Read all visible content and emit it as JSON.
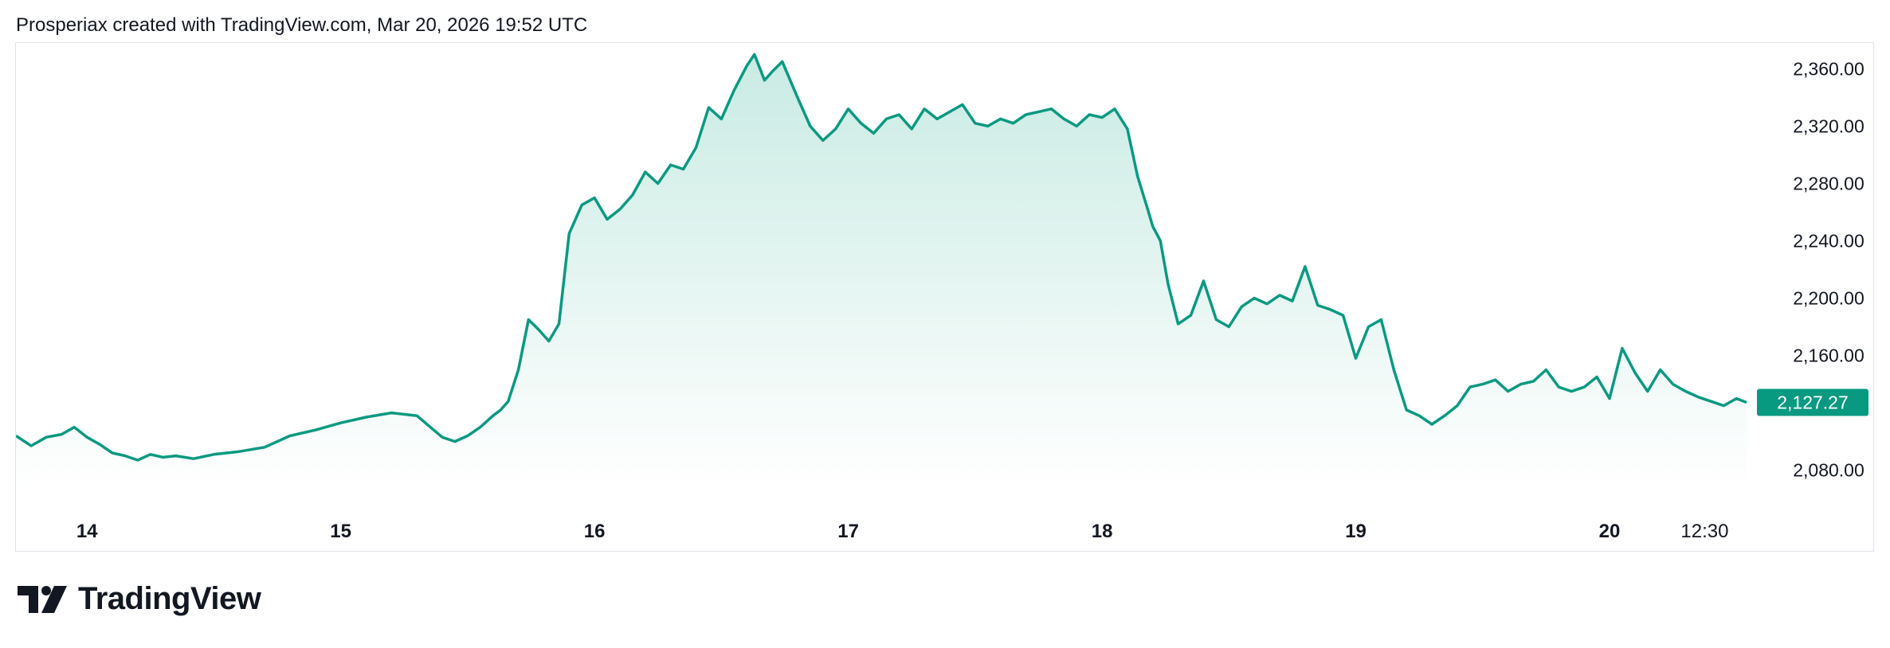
{
  "header": {
    "attribution": "Prosperiax created with TradingView.com, Mar 20, 2026 19:52 UTC"
  },
  "footer": {
    "brand": "TradingView"
  },
  "colors": {
    "line": "#089981",
    "fill_top": "#c9ebe3",
    "fill_bottom": "#ffffff",
    "price_tag": "#089981",
    "border": "#e0e3eb"
  },
  "chart_data": {
    "type": "area",
    "y_axis": {
      "ticks": [
        "2,360.00",
        "2,320.00",
        "2,280.00",
        "2,240.00",
        "2,200.00",
        "2,160.00",
        "2,080.00"
      ],
      "tick_values": [
        2360,
        2320,
        2280,
        2240,
        2200,
        2160,
        2080
      ],
      "range": [
        2067,
        2378
      ],
      "position": "right"
    },
    "x_axis": {
      "ticks": [
        "14",
        "15",
        "16",
        "17",
        "18",
        "19",
        "20",
        "12:30"
      ],
      "tick_values": [
        14,
        15,
        16,
        17,
        18,
        19,
        20,
        20.375
      ],
      "range": [
        13.72,
        20.54
      ]
    },
    "last_price": {
      "label": "2,127.27",
      "value": 2127.27
    },
    "series": [
      {
        "x": [
          13.72,
          13.78,
          13.84,
          13.9,
          13.95,
          14.0,
          14.05,
          14.1,
          14.15,
          14.2,
          14.25,
          14.3,
          14.35,
          14.42,
          14.5,
          14.6,
          14.7,
          14.8,
          14.9,
          15.0,
          15.1,
          15.2,
          15.3,
          15.4,
          15.45,
          15.5,
          15.55,
          15.6,
          15.63,
          15.66,
          15.7,
          15.74,
          15.78,
          15.82,
          15.86,
          15.9,
          15.95,
          16.0,
          16.05,
          16.1,
          16.15,
          16.2,
          16.25,
          16.3,
          16.35,
          16.4,
          16.45,
          16.5,
          16.55,
          16.6,
          16.63,
          16.67,
          16.7,
          16.74,
          16.8,
          16.85,
          16.9,
          16.95,
          17.0,
          17.05,
          17.1,
          17.15,
          17.2,
          17.25,
          17.3,
          17.35,
          17.4,
          17.45,
          17.5,
          17.55,
          17.6,
          17.65,
          17.7,
          17.75,
          17.8,
          17.85,
          17.9,
          17.95,
          18.0,
          18.05,
          18.1,
          18.14,
          18.18,
          18.2,
          18.23,
          18.26,
          18.3,
          18.35,
          18.4,
          18.45,
          18.5,
          18.55,
          18.6,
          18.65,
          18.7,
          18.75,
          18.8,
          18.85,
          18.9,
          18.95,
          19.0,
          19.05,
          19.1,
          19.15,
          19.2,
          19.25,
          19.3,
          19.35,
          19.4,
          19.45,
          19.5,
          19.55,
          19.6,
          19.65,
          19.7,
          19.75,
          19.8,
          19.85,
          19.9,
          19.95,
          20.0,
          20.05,
          20.1,
          20.15,
          20.2,
          20.25,
          20.3,
          20.35,
          20.4,
          20.45,
          20.5,
          20.54
        ],
        "values": [
          2104,
          2097,
          2103,
          2105,
          2110,
          2103,
          2098,
          2092,
          2090,
          2087,
          2091,
          2089,
          2090,
          2088,
          2091,
          2093,
          2096,
          2104,
          2108,
          2113,
          2117,
          2120,
          2118,
          2103,
          2100,
          2104,
          2110,
          2118,
          2122,
          2128,
          2150,
          2185,
          2178,
          2170,
          2182,
          2245,
          2265,
          2270,
          2255,
          2262,
          2272,
          2288,
          2280,
          2293,
          2290,
          2305,
          2333,
          2325,
          2345,
          2362,
          2370,
          2352,
          2358,
          2365,
          2340,
          2320,
          2310,
          2318,
          2332,
          2322,
          2315,
          2325,
          2328,
          2318,
          2332,
          2325,
          2330,
          2335,
          2322,
          2320,
          2325,
          2322,
          2328,
          2330,
          2332,
          2325,
          2320,
          2328,
          2326,
          2332,
          2318,
          2285,
          2262,
          2250,
          2240,
          2210,
          2182,
          2188,
          2212,
          2185,
          2180,
          2194,
          2200,
          2196,
          2202,
          2198,
          2222,
          2195,
          2192,
          2188,
          2158,
          2180,
          2185,
          2150,
          2122,
          2118,
          2112,
          2118,
          2125,
          2138,
          2140,
          2143,
          2135,
          2140,
          2142,
          2150,
          2138,
          2135,
          2138,
          2145,
          2130,
          2165,
          2148,
          2135,
          2150,
          2140,
          2135,
          2131,
          2128,
          2125,
          2130,
          2127.27
        ]
      }
    ]
  }
}
